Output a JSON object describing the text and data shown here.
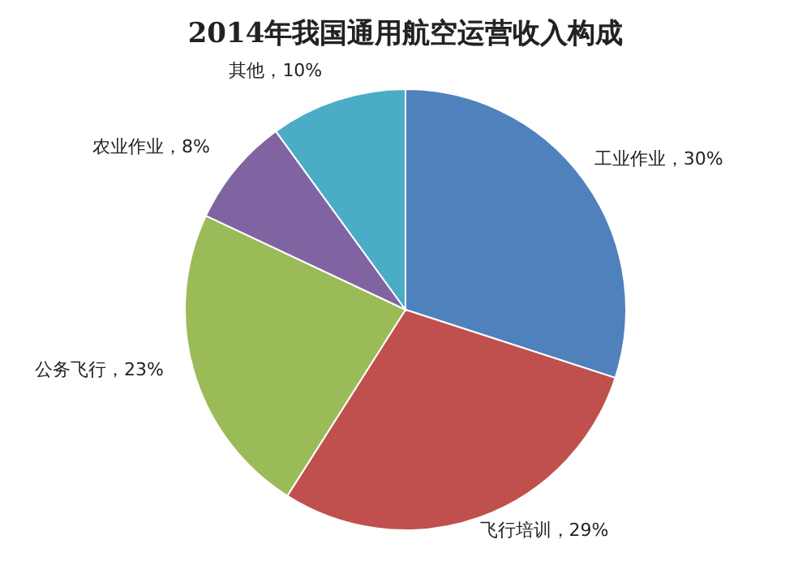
{
  "chart_data": {
    "type": "pie",
    "title": "2014年我国通用航空运营收入构成",
    "categories": [
      "工业作业",
      "飞行培训",
      "公务飞行",
      "农业作业",
      "其他"
    ],
    "values": [
      30,
      29,
      23,
      8,
      10
    ],
    "value_labels": [
      "30%",
      "29%",
      "23%",
      "8%",
      "10%"
    ],
    "colors": [
      "#4f81bd",
      "#c0504d",
      "#9bbb59",
      "#8064a2",
      "#4bacc6"
    ],
    "legend": false
  }
}
